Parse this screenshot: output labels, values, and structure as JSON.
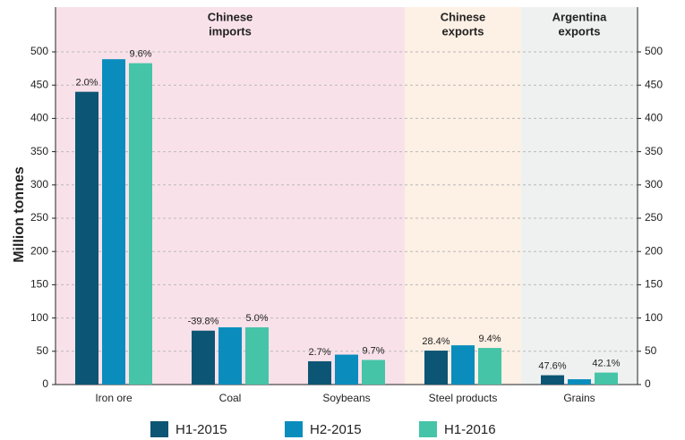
{
  "chart_data": {
    "type": "bar",
    "y_label": "Million tonnes",
    "categories": [
      "Iron ore",
      "Coal",
      "Soybeans",
      "Steel products",
      "Grains"
    ],
    "series": [
      {
        "name": "H1-2015",
        "color": "#0d5574",
        "values": [
          440,
          81,
          35,
          51,
          14
        ],
        "change_labels": [
          "2.0%",
          "-39.8%",
          "2.7%",
          "28.4%",
          "47.6%"
        ]
      },
      {
        "name": "H2-2015",
        "color": "#0a8dbd",
        "values": [
          489,
          86,
          45,
          59,
          8
        ]
      },
      {
        "name": "H1-2016",
        "color": "#45c4a8",
        "values": [
          483,
          86,
          37,
          55,
          18
        ],
        "change_labels": [
          "9.6%",
          "5.0%",
          "9.7%",
          "9.4%",
          "42.1%"
        ]
      }
    ],
    "regions": [
      {
        "lines": [
          "Chinese",
          "imports"
        ],
        "span": 3,
        "color": "#f9e1ea"
      },
      {
        "lines": [
          "Chinese",
          "exports"
        ],
        "span": 1,
        "color": "#fdf0e4"
      },
      {
        "lines": [
          "Argentina",
          "exports"
        ],
        "span": 1,
        "color": "#eff1f1"
      }
    ],
    "ylim": [
      0,
      500
    ],
    "yticks": [
      0,
      50,
      100,
      150,
      200,
      250,
      300,
      350,
      400,
      450,
      500
    ],
    "y2lim": [
      0,
      500
    ],
    "y2ticks": [
      0,
      50,
      100,
      150,
      200,
      250,
      300,
      350,
      400,
      450,
      500
    ],
    "grid": true,
    "legend": "bottom"
  }
}
